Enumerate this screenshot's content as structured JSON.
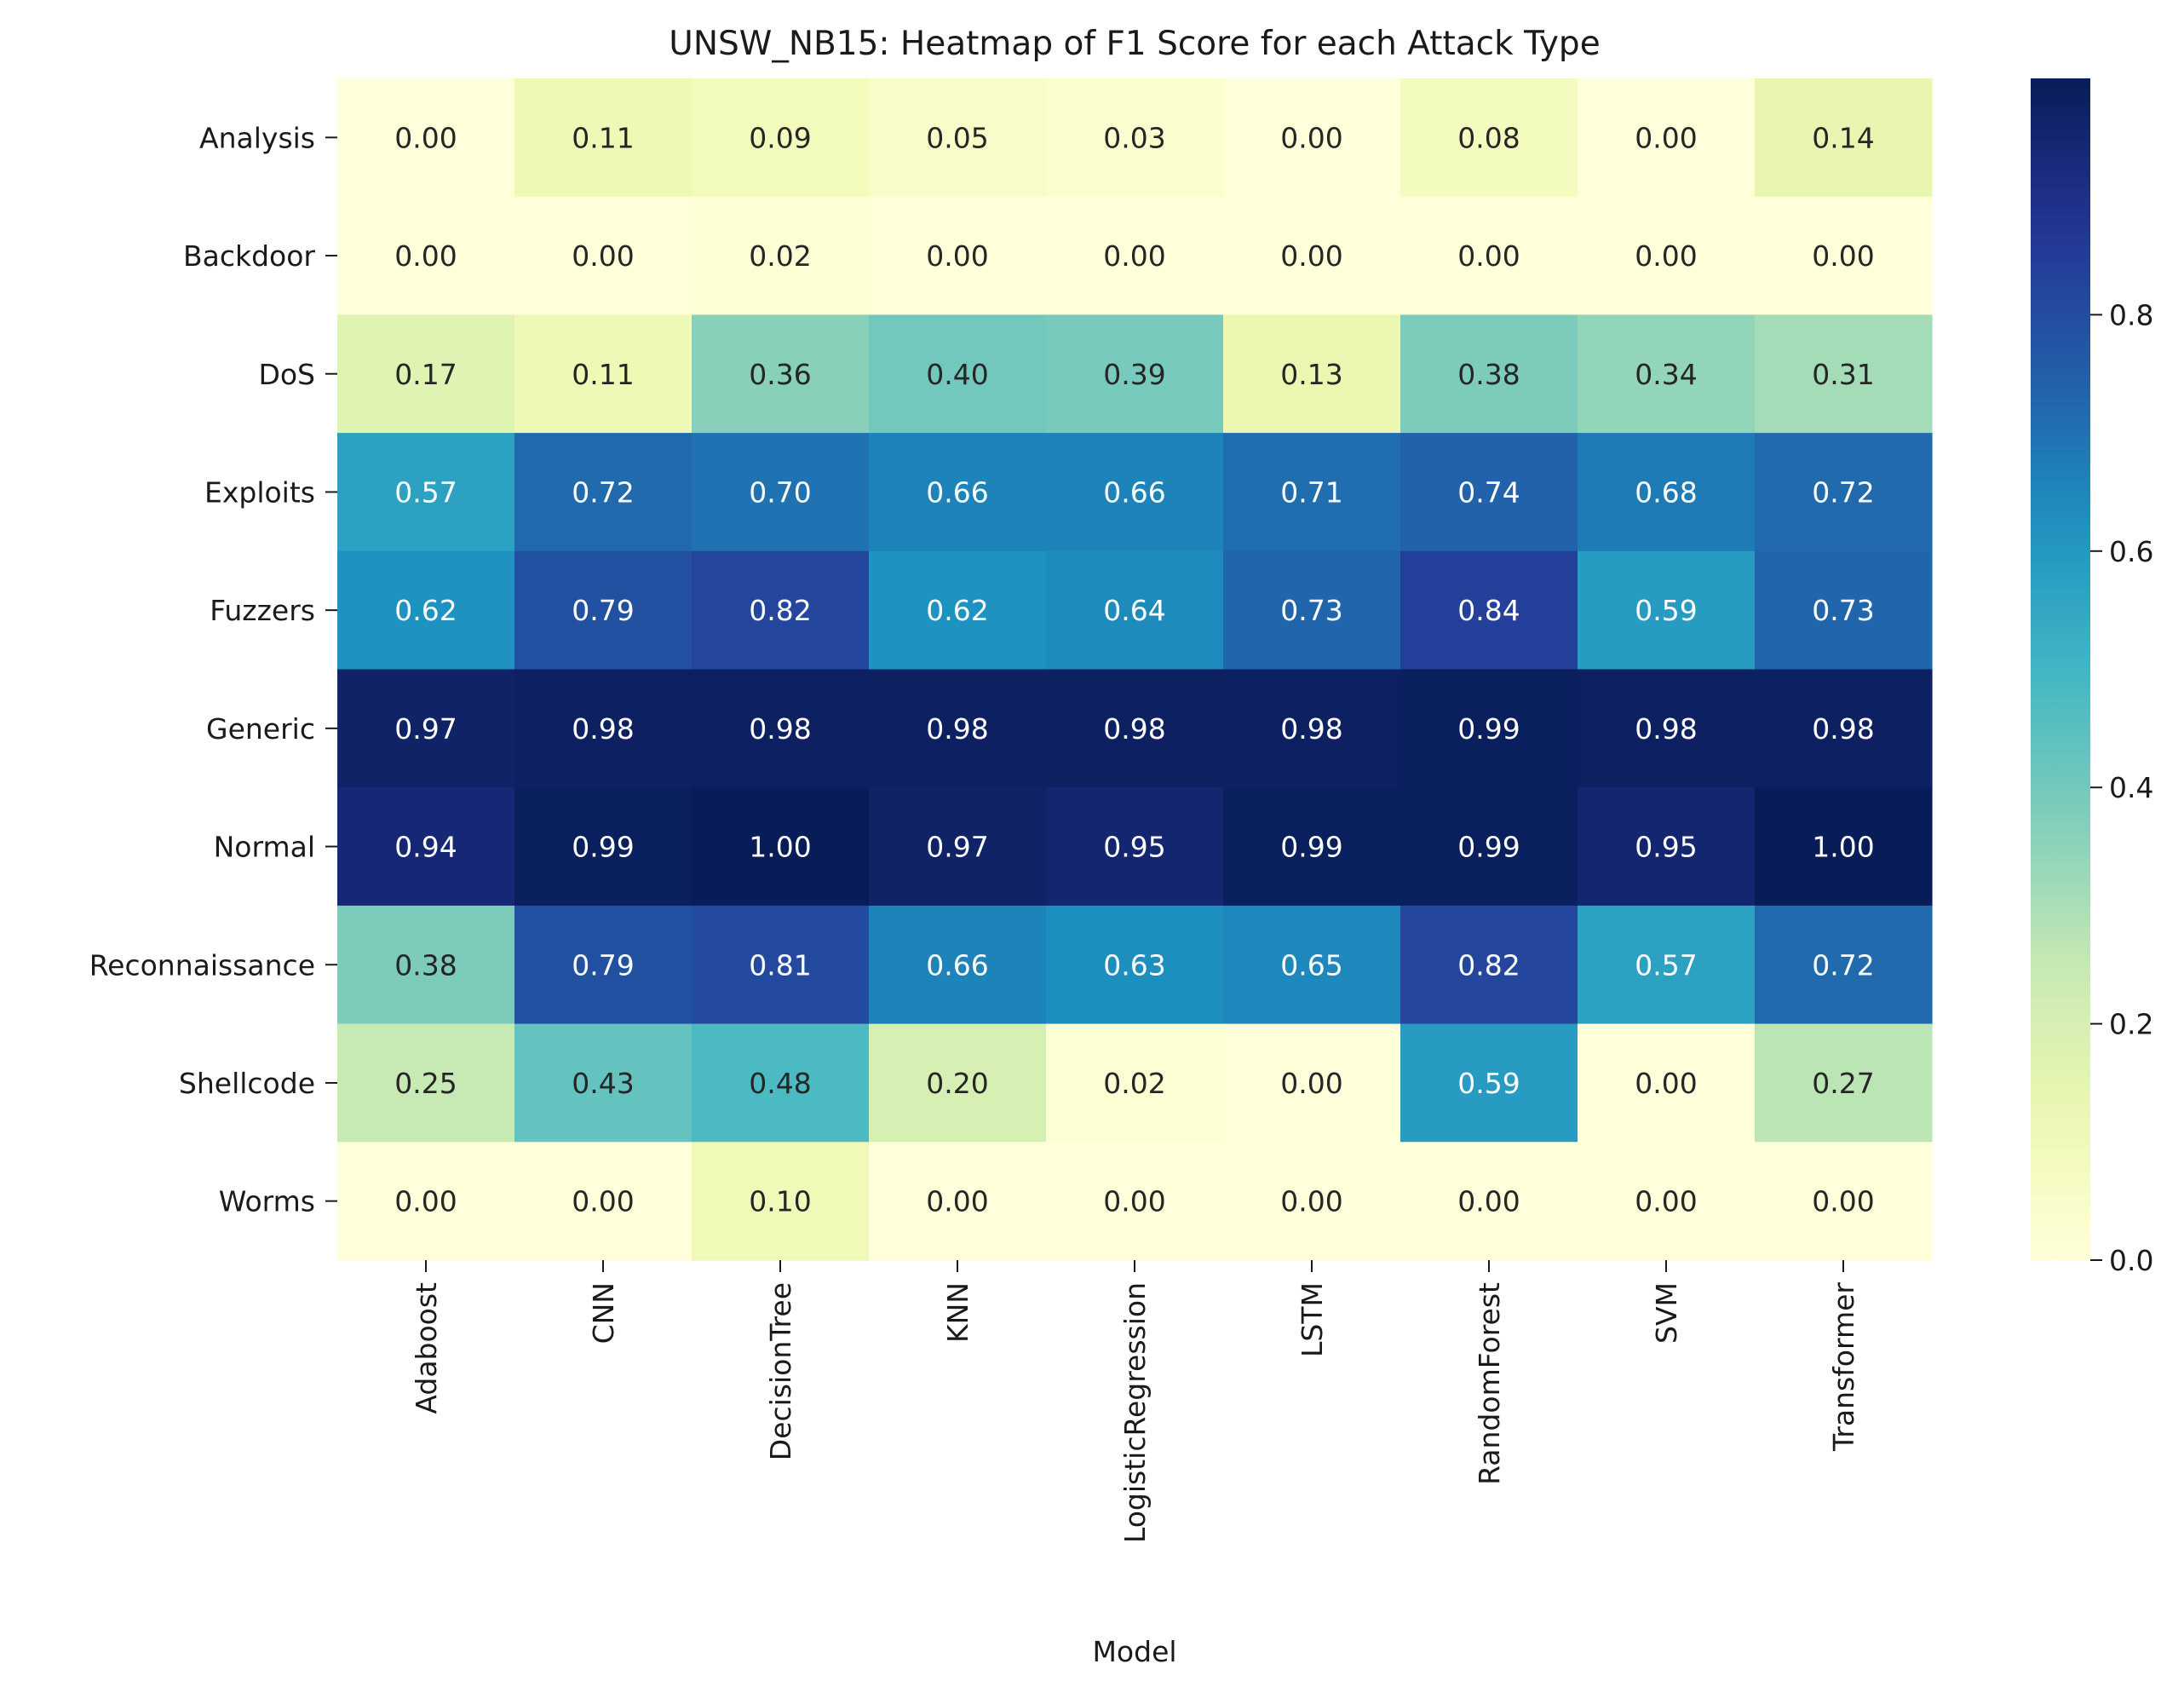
{
  "chart_data": {
    "type": "heatmap",
    "title": "UNSW_NB15: Heatmap of F1 Score for each Attack Type",
    "xlabel": "Model",
    "ylabel": "",
    "x_categories": [
      "Adaboost",
      "CNN",
      "DecisionTree",
      "KNN",
      "LogisticRegression",
      "LSTM",
      "RandomForest",
      "SVM",
      "Transformer"
    ],
    "y_categories": [
      "Analysis",
      "Backdoor",
      "DoS",
      "Exploits",
      "Fuzzers",
      "Generic",
      "Normal",
      "Reconnaissance",
      "Shellcode",
      "Worms"
    ],
    "values": [
      [
        0.0,
        0.11,
        0.09,
        0.05,
        0.03,
        0.0,
        0.08,
        0.0,
        0.14
      ],
      [
        0.0,
        0.0,
        0.02,
        0.0,
        0.0,
        0.0,
        0.0,
        0.0,
        0.0
      ],
      [
        0.17,
        0.11,
        0.36,
        0.4,
        0.39,
        0.13,
        0.38,
        0.34,
        0.31
      ],
      [
        0.57,
        0.72,
        0.7,
        0.66,
        0.66,
        0.71,
        0.74,
        0.68,
        0.72
      ],
      [
        0.62,
        0.79,
        0.82,
        0.62,
        0.64,
        0.73,
        0.84,
        0.59,
        0.73
      ],
      [
        0.97,
        0.98,
        0.98,
        0.98,
        0.98,
        0.98,
        0.99,
        0.98,
        0.98
      ],
      [
        0.94,
        0.99,
        1.0,
        0.97,
        0.95,
        0.99,
        0.99,
        0.95,
        1.0
      ],
      [
        0.38,
        0.79,
        0.81,
        0.66,
        0.63,
        0.65,
        0.82,
        0.57,
        0.72
      ],
      [
        0.25,
        0.43,
        0.48,
        0.2,
        0.02,
        0.0,
        0.59,
        0.0,
        0.27
      ],
      [
        0.0,
        0.0,
        0.1,
        0.0,
        0.0,
        0.0,
        0.0,
        0.0,
        0.0
      ]
    ],
    "value_format": "0.00",
    "colormap": "YlGnBu",
    "color_range": [
      0.0,
      1.0
    ],
    "colorbar_ticks": [
      0.0,
      0.2,
      0.4,
      0.6,
      0.8
    ],
    "colorbar_tick_labels": [
      "0.0",
      "0.2",
      "0.4",
      "0.6",
      "0.8"
    ],
    "grid": false,
    "legend": "colorbar-right"
  }
}
